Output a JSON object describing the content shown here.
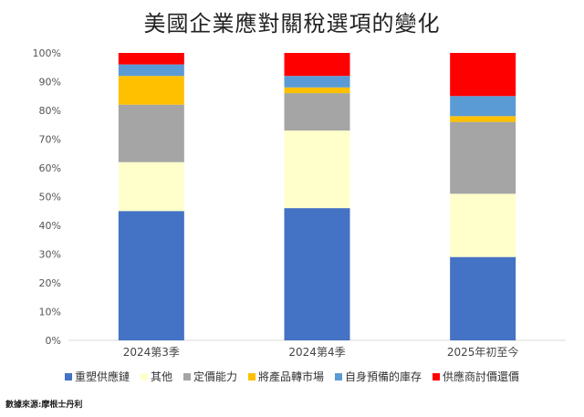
{
  "chart_data": {
    "type": "bar",
    "stacked": true,
    "percent": true,
    "title": "美國企業應對關稅選項的變化",
    "categories": [
      "2024第3季",
      "2024第4季",
      "2025年初至今"
    ],
    "series": [
      {
        "name": "重塑供應鏈",
        "color": "#4472C4",
        "values": [
          45,
          46,
          29
        ]
      },
      {
        "name": "其他",
        "color": "#FFFFCC",
        "values": [
          17,
          27,
          22
        ]
      },
      {
        "name": "定價能力",
        "color": "#A5A5A5",
        "values": [
          20,
          13,
          25
        ]
      },
      {
        "name": "將產品轉市場",
        "color": "#FFC000",
        "values": [
          10,
          2,
          2
        ]
      },
      {
        "name": "自身預備的庫存",
        "color": "#5B9BD5",
        "values": [
          4,
          4,
          7
        ]
      },
      {
        "name": "供應商討價還價",
        "color": "#FF0000",
        "values": [
          4,
          8,
          15
        ]
      }
    ],
    "ylim": [
      0,
      100
    ],
    "yticks": [
      "0%",
      "10%",
      "20%",
      "30%",
      "40%",
      "50%",
      "60%",
      "70%",
      "80%",
      "90%",
      "100%"
    ],
    "grid": false,
    "legend": "bottom"
  },
  "source": "數據來源:摩根士丹利"
}
